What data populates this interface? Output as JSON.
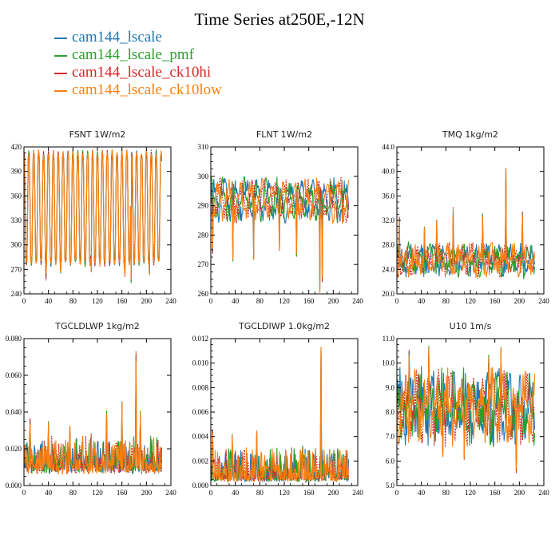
{
  "title": "Time Series at250E,-12N",
  "legend": [
    {
      "label": "cam144_lscale",
      "color": "#1f77b4"
    },
    {
      "label": "cam144_lscale_pmf",
      "color": "#2ca02c"
    },
    {
      "label": "cam144_lscale_ck10hi",
      "color": "#d62728"
    },
    {
      "label": "cam144_lscale_ck10low",
      "color": "#ff7f0e"
    }
  ],
  "chart_data": [
    {
      "type": "line",
      "title": "FSNT   1W/m2",
      "xlim": [
        0,
        240
      ],
      "ylim": [
        240,
        420
      ],
      "xticks": [
        0,
        40,
        80,
        120,
        160,
        200,
        240
      ],
      "yticks": [
        240,
        270,
        300,
        330,
        360,
        390,
        420
      ],
      "ytick_labels": [
        "240",
        "270",
        "300",
        "330",
        "360",
        "390",
        "420"
      ],
      "pattern": "diurnal",
      "base": 345,
      "amp": 68,
      "noise": 4,
      "events": [
        [
          36,
          258
        ],
        [
          60,
          265
        ],
        [
          110,
          268
        ],
        [
          165,
          262
        ],
        [
          175,
          255
        ],
        [
          205,
          265
        ]
      ],
      "series_names": [
        "cam144_lscale",
        "cam144_lscale_pmf",
        "cam144_lscale_ck10hi",
        "cam144_lscale_ck10low"
      ]
    },
    {
      "type": "line",
      "title": "FLNT   1W/m2",
      "xlim": [
        0,
        240
      ],
      "ylim": [
        260,
        310
      ],
      "xticks": [
        0,
        40,
        80,
        120,
        160,
        200,
        240
      ],
      "yticks": [
        260,
        270,
        280,
        290,
        300,
        310
      ],
      "ytick_labels": [
        "260",
        "270",
        "280",
        "290",
        "300",
        "310"
      ],
      "pattern": "noise",
      "base": 292,
      "amp": 5,
      "noise": 3,
      "events": [
        [
          3,
          274
        ],
        [
          36,
          271
        ],
        [
          70,
          272
        ],
        [
          112,
          275
        ],
        [
          140,
          273
        ],
        [
          178,
          261
        ],
        [
          182,
          264
        ],
        [
          215,
          284
        ]
      ],
      "series_names": [
        "cam144_lscale",
        "cam144_lscale_pmf",
        "cam144_lscale_ck10hi",
        "cam144_lscale_ck10low"
      ]
    },
    {
      "type": "line",
      "title": "TMQ   1kg/m2",
      "xlim": [
        0,
        240
      ],
      "ylim": [
        20,
        44
      ],
      "xticks": [
        0,
        40,
        80,
        120,
        160,
        200,
        240
      ],
      "yticks": [
        20,
        24,
        28,
        32,
        36,
        40,
        44
      ],
      "ytick_labels": [
        "20.0",
        "24.0",
        "28.0",
        "32.0",
        "36.0",
        "40.0",
        "44.0"
      ],
      "pattern": "noise",
      "base": 25.5,
      "amp": 1.5,
      "noise": 1.6,
      "events": [
        [
          4,
          32.5
        ],
        [
          45,
          31
        ],
        [
          65,
          32
        ],
        [
          92,
          34
        ],
        [
          140,
          33
        ],
        [
          178,
          40.3
        ],
        [
          205,
          33.5
        ]
      ],
      "series_names": [
        "cam144_lscale",
        "cam144_lscale_pmf",
        "cam144_lscale_ck10hi",
        "cam144_lscale_ck10low"
      ]
    },
    {
      "type": "line",
      "title": "TGCLDLWP   1kg/m2",
      "xlim": [
        0,
        240
      ],
      "ylim": [
        0,
        0.08
      ],
      "xticks": [
        0,
        40,
        80,
        120,
        160,
        200,
        240
      ],
      "yticks": [
        0,
        0.02,
        0.04,
        0.06,
        0.08
      ],
      "ytick_labels": [
        "0.000",
        "0.020",
        "0.040",
        "0.060",
        "0.080"
      ],
      "pattern": "spiky",
      "base": 0.006,
      "amp": 0.004,
      "noise": 0.008,
      "events": [
        [
          10,
          0.036
        ],
        [
          40,
          0.035
        ],
        [
          75,
          0.032
        ],
        [
          110,
          0.028
        ],
        [
          135,
          0.04
        ],
        [
          160,
          0.045
        ],
        [
          183,
          0.073
        ],
        [
          190,
          0.04
        ]
      ],
      "series_names": [
        "cam144_lscale",
        "cam144_lscale_pmf",
        "cam144_lscale_ck10hi",
        "cam144_lscale_ck10low"
      ]
    },
    {
      "type": "line",
      "title": "TGCLDIWP   1.0kg/m2",
      "xlim": [
        0,
        240
      ],
      "ylim": [
        0,
        0.012
      ],
      "xticks": [
        0,
        40,
        80,
        120,
        160,
        200,
        240
      ],
      "yticks": [
        0,
        0.002,
        0.004,
        0.006,
        0.008,
        0.01,
        0.012
      ],
      "ytick_labels": [
        "0.000",
        "0.002",
        "0.004",
        "0.006",
        "0.008",
        "0.010",
        "0.012"
      ],
      "pattern": "spiky",
      "base": 0.0003,
      "amp": 0.0002,
      "noise": 0.0012,
      "events": [
        [
          3,
          0.0045
        ],
        [
          35,
          0.0042
        ],
        [
          75,
          0.0044
        ],
        [
          100,
          0.003
        ],
        [
          150,
          0.0032
        ],
        [
          180,
          0.0111
        ],
        [
          200,
          0.0022
        ]
      ],
      "series_names": [
        "cam144_lscale",
        "cam144_lscale_pmf",
        "cam144_lscale_ck10hi",
        "cam144_lscale_ck10low"
      ]
    },
    {
      "type": "line",
      "title": "U10   1m/s",
      "xlim": [
        0,
        240
      ],
      "ylim": [
        5,
        11
      ],
      "xticks": [
        0,
        40,
        80,
        120,
        160,
        200,
        240
      ],
      "yticks": [
        5,
        6,
        7,
        8,
        9,
        10,
        11
      ],
      "ytick_labels": [
        "5.0",
        "6.0",
        "7.0",
        "8.0",
        "9.0",
        "10.0",
        "11.0"
      ],
      "pattern": "noise",
      "base": 8.2,
      "amp": 0.8,
      "noise": 0.9,
      "events": [
        [
          20,
          10.5
        ],
        [
          52,
          10.7
        ],
        [
          75,
          6.2
        ],
        [
          110,
          6.1
        ],
        [
          150,
          10.3
        ],
        [
          170,
          10.6
        ],
        [
          195,
          5.5
        ]
      ],
      "series_names": [
        "cam144_lscale",
        "cam144_lscale_pmf",
        "cam144_lscale_ck10hi",
        "cam144_lscale_ck10low"
      ]
    }
  ]
}
